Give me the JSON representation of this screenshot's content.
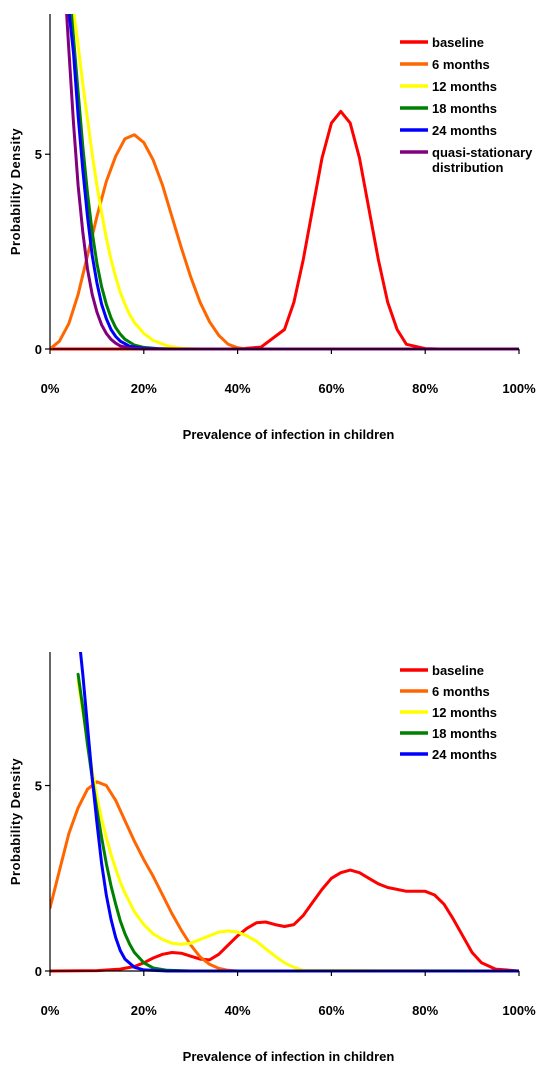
{
  "chart_data": [
    {
      "type": "line",
      "xlabel": "Prevalence of infection in children",
      "ylabel": "Probability Density",
      "xlim": [
        0,
        1
      ],
      "ylim": [
        0,
        8.6
      ],
      "x_ticks": [
        "0%",
        "20%",
        "40%",
        "60%",
        "80%",
        "100%"
      ],
      "y_ticks": [
        "0",
        "5"
      ],
      "legend_position": "top-right",
      "series": [
        {
          "name": "baseline",
          "color": "#ff0000",
          "x": [
            0.0,
            0.4,
            0.45,
            0.5,
            0.52,
            0.54,
            0.56,
            0.58,
            0.6,
            0.62,
            0.64,
            0.66,
            0.68,
            0.7,
            0.72,
            0.74,
            0.76,
            0.8,
            0.83,
            1.0
          ],
          "y": [
            0.0,
            0.0,
            0.05,
            0.5,
            1.2,
            2.3,
            3.6,
            4.9,
            5.8,
            6.1,
            5.8,
            4.9,
            3.6,
            2.3,
            1.2,
            0.5,
            0.12,
            0.01,
            0.0,
            0.0
          ]
        },
        {
          "name": "6 months",
          "color": "#ff6600",
          "x": [
            0.0,
            0.02,
            0.04,
            0.06,
            0.08,
            0.1,
            0.12,
            0.14,
            0.16,
            0.18,
            0.2,
            0.22,
            0.24,
            0.26,
            0.28,
            0.3,
            0.32,
            0.34,
            0.36,
            0.38,
            0.4,
            0.42
          ],
          "y": [
            0.0,
            0.2,
            0.65,
            1.4,
            2.4,
            3.4,
            4.3,
            4.95,
            5.4,
            5.5,
            5.3,
            4.85,
            4.2,
            3.4,
            2.6,
            1.85,
            1.2,
            0.7,
            0.35,
            0.12,
            0.03,
            0.0
          ]
        },
        {
          "name": "12 months",
          "color": "#ffff00",
          "x": [
            0.05,
            0.06,
            0.07,
            0.08,
            0.09,
            0.1,
            0.11,
            0.12,
            0.13,
            0.14,
            0.15,
            0.16,
            0.17,
            0.18,
            0.2,
            0.22,
            0.25,
            0.28,
            0.32,
            1.0
          ],
          "y": [
            8.7,
            7.8,
            6.8,
            5.9,
            5.0,
            4.2,
            3.5,
            2.85,
            2.3,
            1.85,
            1.45,
            1.15,
            0.88,
            0.68,
            0.4,
            0.22,
            0.08,
            0.02,
            0.0,
            0.0
          ]
        },
        {
          "name": "18 months",
          "color": "#008000",
          "x": [
            0.045,
            0.05,
            0.06,
            0.07,
            0.08,
            0.09,
            0.1,
            0.11,
            0.12,
            0.13,
            0.14,
            0.15,
            0.16,
            0.18,
            0.2,
            0.23,
            0.27,
            1.0
          ],
          "y": [
            8.7,
            8.0,
            6.6,
            5.2,
            4.0,
            3.0,
            2.2,
            1.6,
            1.15,
            0.8,
            0.55,
            0.38,
            0.25,
            0.1,
            0.04,
            0.01,
            0.0,
            0.0
          ]
        },
        {
          "name": "24 months",
          "color": "#0000ff",
          "x": [
            0.04,
            0.05,
            0.06,
            0.07,
            0.08,
            0.09,
            0.1,
            0.11,
            0.12,
            0.13,
            0.14,
            0.15,
            0.17,
            0.2,
            0.25,
            1.0
          ],
          "y": [
            8.7,
            7.6,
            6.0,
            4.6,
            3.4,
            2.4,
            1.7,
            1.15,
            0.78,
            0.5,
            0.32,
            0.2,
            0.07,
            0.02,
            0.0,
            0.0
          ]
        },
        {
          "name": "quasi-stationary\ndistribution",
          "color": "#800080",
          "x": [
            0.035,
            0.04,
            0.05,
            0.06,
            0.07,
            0.08,
            0.09,
            0.1,
            0.11,
            0.12,
            0.13,
            0.14,
            0.15,
            0.17,
            0.2,
            0.25,
            1.0
          ],
          "y": [
            8.7,
            7.7,
            5.8,
            4.2,
            3.0,
            2.05,
            1.4,
            0.95,
            0.62,
            0.4,
            0.25,
            0.15,
            0.08,
            0.02,
            0.0,
            0.0,
            0.0
          ]
        }
      ]
    },
    {
      "type": "line",
      "xlabel": "Prevalence of infection in children",
      "ylabel": "Probability Density",
      "xlim": [
        0,
        1
      ],
      "ylim": [
        0,
        8.6
      ],
      "x_ticks": [
        "0%",
        "20%",
        "40%",
        "60%",
        "80%",
        "100%"
      ],
      "y_ticks": [
        "0",
        "5"
      ],
      "legend_position": "top-right",
      "series": [
        {
          "name": "baseline",
          "color": "#ff0000",
          "x": [
            0.0,
            0.1,
            0.15,
            0.18,
            0.2,
            0.22,
            0.24,
            0.26,
            0.28,
            0.3,
            0.32,
            0.34,
            0.36,
            0.38,
            0.4,
            0.42,
            0.44,
            0.46,
            0.48,
            0.5,
            0.52,
            0.54,
            0.56,
            0.58,
            0.6,
            0.62,
            0.64,
            0.66,
            0.68,
            0.7,
            0.72,
            0.74,
            0.76,
            0.78,
            0.8,
            0.82,
            0.84,
            0.86,
            0.88,
            0.9,
            0.92,
            0.95,
            1.0
          ],
          "y": [
            0.0,
            0.01,
            0.05,
            0.12,
            0.22,
            0.35,
            0.45,
            0.5,
            0.48,
            0.4,
            0.32,
            0.3,
            0.45,
            0.7,
            0.95,
            1.15,
            1.3,
            1.32,
            1.25,
            1.2,
            1.25,
            1.5,
            1.85,
            2.2,
            2.5,
            2.65,
            2.72,
            2.65,
            2.5,
            2.35,
            2.25,
            2.2,
            2.15,
            2.15,
            2.15,
            2.05,
            1.8,
            1.4,
            0.95,
            0.5,
            0.22,
            0.05,
            0.0
          ]
        },
        {
          "name": "6 months",
          "color": "#ff6600",
          "x": [
            0.0,
            0.02,
            0.04,
            0.06,
            0.08,
            0.1,
            0.12,
            0.14,
            0.16,
            0.18,
            0.2,
            0.22,
            0.24,
            0.26,
            0.28,
            0.3,
            0.32,
            0.34,
            0.36,
            0.38,
            0.4
          ],
          "y": [
            1.7,
            2.7,
            3.7,
            4.4,
            4.9,
            5.1,
            5.0,
            4.6,
            4.05,
            3.5,
            3.0,
            2.55,
            2.05,
            1.55,
            1.1,
            0.7,
            0.38,
            0.18,
            0.07,
            0.02,
            0.0
          ]
        },
        {
          "name": "12 months",
          "color": "#ffff00",
          "x": [
            0.06,
            0.07,
            0.08,
            0.09,
            0.1,
            0.11,
            0.12,
            0.13,
            0.14,
            0.15,
            0.16,
            0.18,
            0.2,
            0.22,
            0.24,
            0.26,
            0.28,
            0.3,
            0.32,
            0.34,
            0.36,
            0.38,
            0.4,
            0.42,
            0.44,
            0.46,
            0.48,
            0.5,
            0.52,
            0.54,
            1.0
          ],
          "y": [
            7.8,
            7.0,
            6.2,
            5.4,
            4.7,
            4.1,
            3.6,
            3.15,
            2.75,
            2.4,
            2.1,
            1.6,
            1.25,
            1.0,
            0.85,
            0.75,
            0.72,
            0.75,
            0.85,
            0.95,
            1.05,
            1.08,
            1.05,
            0.95,
            0.8,
            0.6,
            0.4,
            0.22,
            0.1,
            0.02,
            0.0
          ]
        },
        {
          "name": "18 months",
          "color": "#008000",
          "x": [
            0.06,
            0.07,
            0.08,
            0.09,
            0.1,
            0.11,
            0.12,
            0.13,
            0.14,
            0.15,
            0.16,
            0.17,
            0.18,
            0.2,
            0.22,
            0.25,
            0.3,
            1.0
          ],
          "y": [
            8.0,
            7.1,
            6.1,
            5.2,
            4.35,
            3.6,
            2.9,
            2.3,
            1.8,
            1.35,
            1.0,
            0.72,
            0.5,
            0.22,
            0.08,
            0.02,
            0.0,
            0.0
          ]
        },
        {
          "name": "24 months",
          "color": "#0000ff",
          "x": [
            0.065,
            0.07,
            0.08,
            0.09,
            0.1,
            0.11,
            0.12,
            0.13,
            0.14,
            0.15,
            0.16,
            0.18,
            0.2,
            0.25,
            1.0
          ],
          "y": [
            8.6,
            8.0,
            6.6,
            5.2,
            4.0,
            2.9,
            2.05,
            1.4,
            0.9,
            0.55,
            0.32,
            0.1,
            0.03,
            0.0,
            0.0
          ]
        }
      ]
    }
  ]
}
